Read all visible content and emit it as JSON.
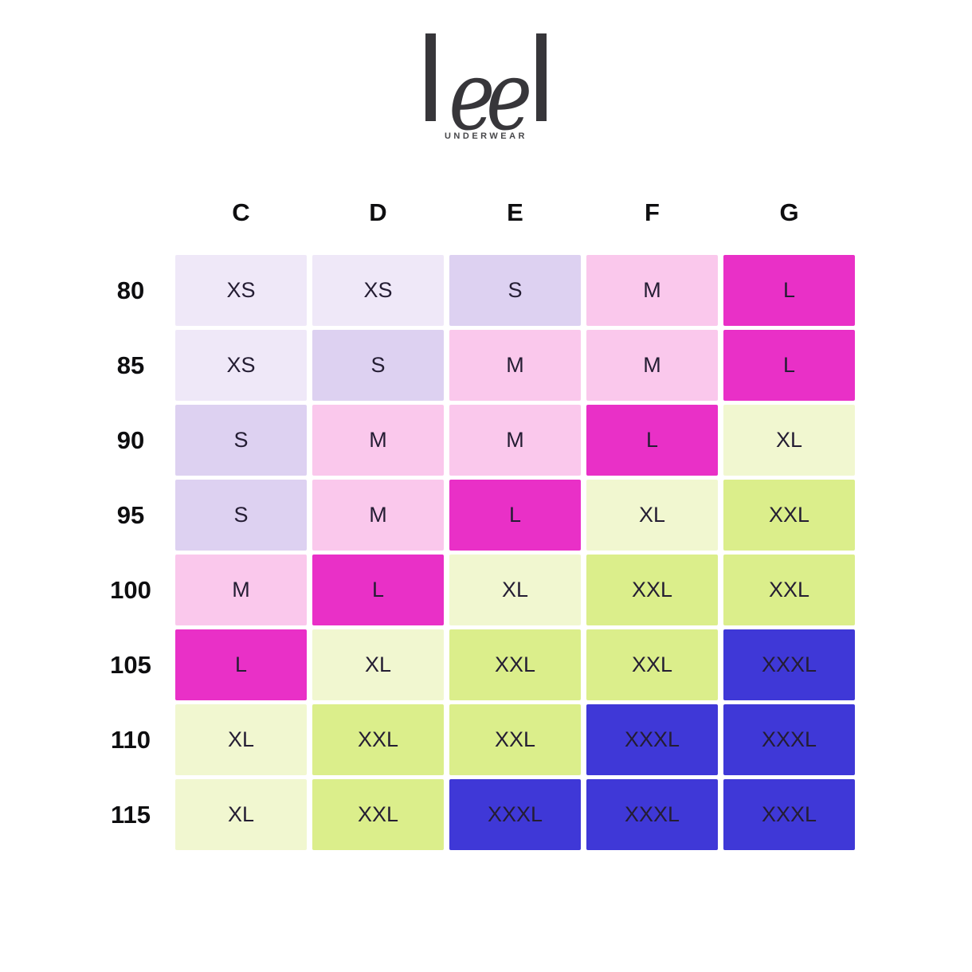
{
  "brand": {
    "logo_text": "leel",
    "logo_ee": "ee",
    "logo_color": "#37363a",
    "tagline": "UNDERWEAR"
  },
  "chart_data": {
    "type": "table",
    "columns": [
      "C",
      "D",
      "E",
      "F",
      "G"
    ],
    "rows": [
      {
        "label": "80",
        "cells": [
          "XS",
          "XS",
          "S",
          "M",
          "L"
        ]
      },
      {
        "label": "85",
        "cells": [
          "XS",
          "S",
          "M",
          "M",
          "L"
        ]
      },
      {
        "label": "90",
        "cells": [
          "S",
          "M",
          "M",
          "L",
          "XL"
        ]
      },
      {
        "label": "95",
        "cells": [
          "S",
          "M",
          "L",
          "XL",
          "XXL"
        ]
      },
      {
        "label": "100",
        "cells": [
          "M",
          "L",
          "XL",
          "XXL",
          "XXL"
        ]
      },
      {
        "label": "105",
        "cells": [
          "L",
          "XL",
          "XXL",
          "XXL",
          "XXXL"
        ]
      },
      {
        "label": "110",
        "cells": [
          "XL",
          "XXL",
          "XXL",
          "XXXL",
          "XXXL"
        ]
      },
      {
        "label": "115",
        "cells": [
          "XL",
          "XXL",
          "XXXL",
          "XXXL",
          "XXXL"
        ]
      }
    ],
    "size_colors": {
      "XS": "#EFE8F8",
      "S": "#DDD1F1",
      "M": "#FAC8EC",
      "L": "#E930C7",
      "XL": "#F1F7D0",
      "XXL": "#DBEE8B",
      "XXXL": "#3F38D7"
    },
    "cell_text_color": "#241d33",
    "header_text_color": "#0e0e10"
  }
}
